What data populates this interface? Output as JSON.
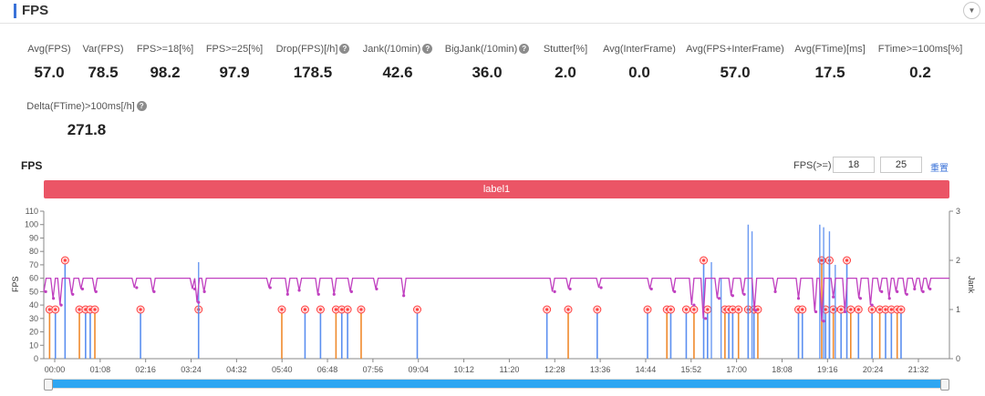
{
  "header": {
    "title": "FPS",
    "collapse_glyph": "▼",
    "collapse_icon": "chevron-down-icon"
  },
  "metrics": [
    {
      "label": "Avg(FPS)",
      "value": "57.0",
      "help": false
    },
    {
      "label": "Var(FPS)",
      "value": "78.5",
      "help": false
    },
    {
      "label": "FPS>=18[%]",
      "value": "98.2",
      "help": false
    },
    {
      "label": "FPS>=25[%]",
      "value": "97.9",
      "help": false
    },
    {
      "label": "Drop(FPS)[/h]",
      "value": "178.5",
      "help": true
    },
    {
      "label": "Jank(/10min)",
      "value": "42.6",
      "help": true
    },
    {
      "label": "BigJank(/10min)",
      "value": "36.0",
      "help": true
    },
    {
      "label": "Stutter[%]",
      "value": "2.0",
      "help": false
    },
    {
      "label": "Avg(InterFrame)",
      "value": "0.0",
      "help": false
    },
    {
      "label": "Avg(FPS+InterFrame)",
      "value": "57.0",
      "help": false
    },
    {
      "label": "Avg(FTime)[ms]",
      "value": "17.5",
      "help": false
    },
    {
      "label": "FTime>=100ms[%]",
      "value": "0.2",
      "help": false
    },
    {
      "label": "Delta(FTime)>100ms[/h]",
      "value": "271.8",
      "help": true
    }
  ],
  "help_glyph": "?",
  "chart_title": "FPS",
  "filter": {
    "label": "FPS(>=)",
    "value1": "18",
    "value2": "25",
    "reset_label": "重置"
  },
  "label_band": "label1",
  "colors": {
    "accent": "#3a72d8",
    "band": "#eb5566",
    "fps_line": "#c040c0",
    "jank_fill": "#5b8ff0",
    "jank_orange": "#f08a2c",
    "marker": "#ff4040",
    "scroll_thumb": "#2ea6f2"
  },
  "chart_data": {
    "type": "line",
    "x_ticks": [
      "00:00",
      "01:08",
      "02:16",
      "03:24",
      "04:32",
      "05:40",
      "06:48",
      "07:56",
      "09:04",
      "10:12",
      "11:20",
      "12:28",
      "13:36",
      "14:44",
      "15:52",
      "17:00",
      "18:08",
      "19:16",
      "20:24",
      "21:32"
    ],
    "y_left": {
      "label": "FPS",
      "range": [
        0,
        110
      ],
      "ticks": [
        0,
        10,
        20,
        30,
        40,
        50,
        60,
        70,
        80,
        90,
        100,
        110
      ]
    },
    "y_right": {
      "label": "Jank",
      "range": [
        0,
        3
      ],
      "ticks": [
        0,
        1,
        2,
        3
      ]
    },
    "fps_baseline": 60,
    "fps_dips": [
      {
        "t": 0.05,
        "v": 50
      },
      {
        "t": 0.25,
        "v": 45
      },
      {
        "t": 0.45,
        "v": 40
      },
      {
        "t": 0.75,
        "v": 48
      },
      {
        "t": 1.0,
        "v": 52
      },
      {
        "t": 1.35,
        "v": 50
      },
      {
        "t": 2.4,
        "v": 53
      },
      {
        "t": 2.85,
        "v": 50
      },
      {
        "t": 3.9,
        "v": 52
      },
      {
        "t": 4.0,
        "v": 42
      },
      {
        "t": 4.15,
        "v": 50
      },
      {
        "t": 5.85,
        "v": 53
      },
      {
        "t": 6.3,
        "v": 48
      },
      {
        "t": 6.6,
        "v": 51
      },
      {
        "t": 7.1,
        "v": 48
      },
      {
        "t": 7.5,
        "v": 48
      },
      {
        "t": 7.95,
        "v": 50
      },
      {
        "t": 8.6,
        "v": 52
      },
      {
        "t": 9.3,
        "v": 47
      },
      {
        "t": 13.2,
        "v": 50
      },
      {
        "t": 13.6,
        "v": 52
      },
      {
        "t": 14.4,
        "v": 53
      },
      {
        "t": 15.7,
        "v": 52
      },
      {
        "t": 16.3,
        "v": 50
      },
      {
        "t": 16.8,
        "v": 40
      },
      {
        "t": 17.1,
        "v": 30
      },
      {
        "t": 17.45,
        "v": 45
      },
      {
        "t": 17.8,
        "v": 47
      },
      {
        "t": 18.1,
        "v": 48
      },
      {
        "t": 18.4,
        "v": 36
      },
      {
        "t": 18.9,
        "v": 50
      },
      {
        "t": 19.5,
        "v": 45
      },
      {
        "t": 19.95,
        "v": 35
      },
      {
        "t": 20.15,
        "v": 28
      },
      {
        "t": 20.4,
        "v": 46
      },
      {
        "t": 20.7,
        "v": 35
      },
      {
        "t": 21.1,
        "v": 45
      },
      {
        "t": 21.4,
        "v": 40
      },
      {
        "t": 21.65,
        "v": 50
      },
      {
        "t": 21.85,
        "v": 45
      },
      {
        "t": 22.05,
        "v": 50
      },
      {
        "t": 22.3,
        "v": 48
      },
      {
        "t": 22.5,
        "v": 52
      },
      {
        "t": 22.72,
        "v": 50
      },
      {
        "t": 22.9,
        "v": 52
      }
    ],
    "jank_events": [
      {
        "t": 0.15,
        "v": 1
      },
      {
        "t": 0.3,
        "v": 1
      },
      {
        "t": 0.55,
        "v": 2
      },
      {
        "t": 0.92,
        "v": 1
      },
      {
        "t": 1.08,
        "v": 1
      },
      {
        "t": 1.2,
        "v": 1
      },
      {
        "t": 1.32,
        "v": 1
      },
      {
        "t": 2.5,
        "v": 1
      },
      {
        "t": 4.0,
        "v": 1
      },
      {
        "t": 6.15,
        "v": 1
      },
      {
        "t": 6.75,
        "v": 1
      },
      {
        "t": 7.15,
        "v": 1
      },
      {
        "t": 7.55,
        "v": 1
      },
      {
        "t": 7.7,
        "v": 1
      },
      {
        "t": 7.85,
        "v": 1
      },
      {
        "t": 8.2,
        "v": 1
      },
      {
        "t": 9.65,
        "v": 1
      },
      {
        "t": 13.0,
        "v": 1
      },
      {
        "t": 13.55,
        "v": 1
      },
      {
        "t": 14.3,
        "v": 1
      },
      {
        "t": 15.6,
        "v": 1
      },
      {
        "t": 16.1,
        "v": 1
      },
      {
        "t": 16.2,
        "v": 1
      },
      {
        "t": 16.6,
        "v": 1
      },
      {
        "t": 16.8,
        "v": 1
      },
      {
        "t": 17.05,
        "v": 2
      },
      {
        "t": 17.15,
        "v": 1
      },
      {
        "t": 17.6,
        "v": 1
      },
      {
        "t": 17.7,
        "v": 1
      },
      {
        "t": 17.8,
        "v": 1
      },
      {
        "t": 17.95,
        "v": 1
      },
      {
        "t": 18.2,
        "v": 1
      },
      {
        "t": 18.35,
        "v": 1
      },
      {
        "t": 18.45,
        "v": 1
      },
      {
        "t": 19.5,
        "v": 1
      },
      {
        "t": 19.6,
        "v": 1
      },
      {
        "t": 20.1,
        "v": 2
      },
      {
        "t": 20.2,
        "v": 1
      },
      {
        "t": 20.3,
        "v": 2
      },
      {
        "t": 20.4,
        "v": 1
      },
      {
        "t": 20.6,
        "v": 1
      },
      {
        "t": 20.75,
        "v": 2
      },
      {
        "t": 20.85,
        "v": 1
      },
      {
        "t": 21.05,
        "v": 1
      },
      {
        "t": 21.4,
        "v": 1
      },
      {
        "t": 21.6,
        "v": 1
      },
      {
        "t": 21.75,
        "v": 1
      },
      {
        "t": 21.9,
        "v": 1
      },
      {
        "t": 22.05,
        "v": 1
      },
      {
        "t": 22.15,
        "v": 1
      }
    ],
    "fps_spikes": [
      {
        "t": 17.25,
        "v": 72
      },
      {
        "t": 17.5,
        "v": 60
      },
      {
        "t": 18.2,
        "v": 100
      },
      {
        "t": 18.3,
        "v": 95
      },
      {
        "t": 20.05,
        "v": 100
      },
      {
        "t": 20.15,
        "v": 98
      },
      {
        "t": 20.3,
        "v": 95
      },
      {
        "t": 20.45,
        "v": 70
      },
      {
        "t": 4.0,
        "v": 72
      }
    ]
  }
}
